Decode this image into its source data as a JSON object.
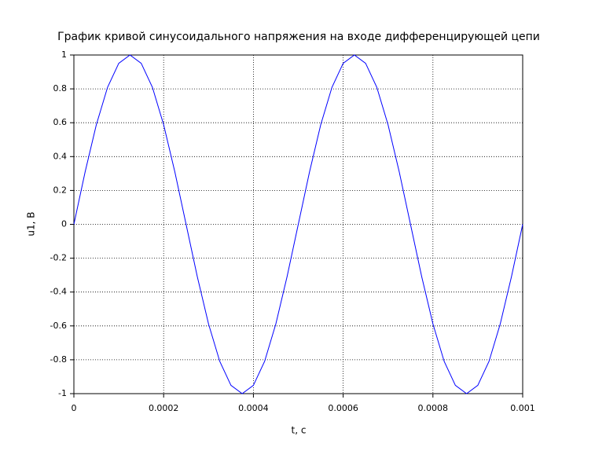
{
  "chart_data": {
    "type": "line",
    "title": "График кривой синусоидального напряжения на входе дифференцирующей цепи",
    "x_label": "t, c",
    "y_label": "u1, B",
    "x": [
      0,
      2.5e-05,
      5e-05,
      7.5e-05,
      0.0001,
      0.000125,
      0.00015,
      0.000175,
      0.0002,
      0.000225,
      0.00025,
      0.000275,
      0.0003,
      0.000325,
      0.00035,
      0.000375,
      0.0004,
      0.000425,
      0.00045,
      0.000475,
      0.0005,
      0.000525,
      0.00055,
      0.000575,
      0.0006,
      0.000625,
      0.00065,
      0.000675,
      0.0007,
      0.000725,
      0.00075,
      0.000775,
      0.0008,
      0.000825,
      0.00085,
      0.000875,
      0.0009,
      0.000925,
      0.00095,
      0.000975,
      0.001
    ],
    "series": [
      {
        "color": "#0000ff",
        "values": [
          0,
          0.309,
          0.588,
          0.809,
          0.951,
          1,
          0.951,
          0.809,
          0.588,
          0.309,
          0,
          -0.309,
          -0.588,
          -0.809,
          -0.951,
          -1,
          -0.951,
          -0.809,
          -0.588,
          -0.309,
          0,
          0.309,
          0.588,
          0.809,
          0.951,
          1,
          0.951,
          0.809,
          0.588,
          0.309,
          0,
          -0.309,
          -0.588,
          -0.809,
          -0.951,
          -1,
          -0.951,
          -0.809,
          -0.588,
          -0.309,
          0
        ]
      }
    ],
    "xlim": [
      0,
      0.001
    ],
    "xticks": [
      0,
      0.0002,
      0.0004,
      0.0006,
      0.0008,
      0.001
    ],
    "ylim": [
      -1,
      1
    ],
    "yticks": [
      -1,
      -0.8,
      -0.6,
      -0.4,
      -0.2,
      0,
      0.2,
      0.4,
      0.6,
      0.8,
      1
    ],
    "grid": true
  }
}
